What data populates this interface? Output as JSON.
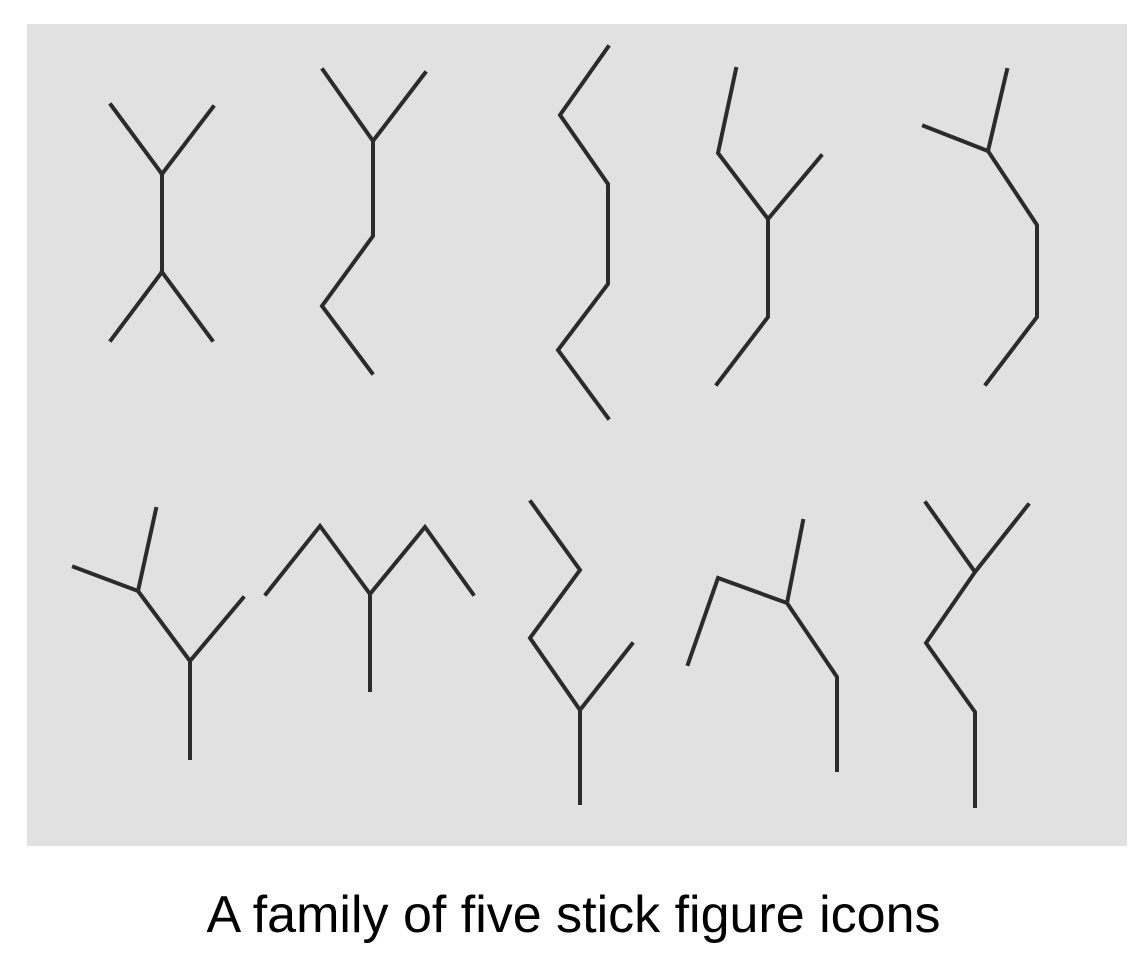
{
  "caption": "A family of five stick figure icons",
  "colors": {
    "panel_background": "#e1e1e1",
    "stroke": "#2b2b2b",
    "caption_text": "#000000"
  },
  "figures": [
    {
      "row": 1,
      "position": 1,
      "name": "stick-figure-symmetric-x"
    },
    {
      "row": 1,
      "position": 2,
      "name": "stick-figure-y-with-zigzag-leg"
    },
    {
      "row": 1,
      "position": 3,
      "name": "stick-figure-s-curve"
    },
    {
      "row": 1,
      "position": 4,
      "name": "stick-figure-bent-arm-y"
    },
    {
      "row": 1,
      "position": 5,
      "name": "stick-figure-curved-back"
    },
    {
      "row": 2,
      "position": 1,
      "name": "stick-figure-tilted-y"
    },
    {
      "row": 2,
      "position": 2,
      "name": "stick-figure-raised-arms"
    },
    {
      "row": 2,
      "position": 3,
      "name": "stick-figure-zigzag-head"
    },
    {
      "row": 2,
      "position": 4,
      "name": "stick-figure-bent-arm-leg"
    },
    {
      "row": 2,
      "position": 5,
      "name": "stick-figure-y-with-bent-leg"
    }
  ]
}
